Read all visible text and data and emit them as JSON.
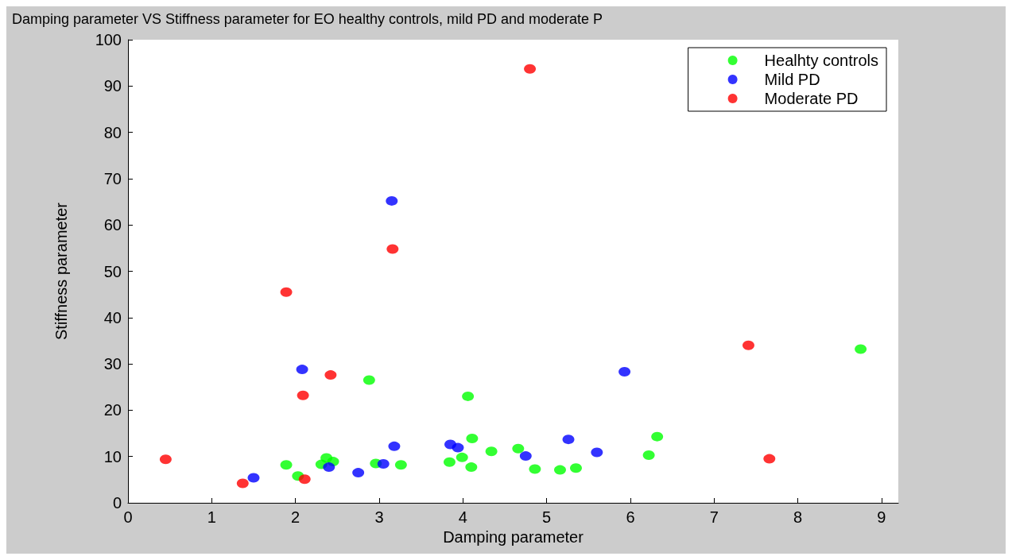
{
  "chart_data": {
    "type": "scatter",
    "title": "Damping parameter VS Stiffness parameter for EO healthy controls, mild PD and moderate P",
    "xlabel": "Damping parameter",
    "ylabel": "Stiffness parameter",
    "xlim": [
      0,
      9.2
    ],
    "xticks": [
      0,
      1,
      2,
      3,
      4,
      5,
      6,
      7,
      8,
      9
    ],
    "ylim": [
      0,
      100
    ],
    "yticks": [
      0,
      10,
      20,
      30,
      40,
      50,
      60,
      70,
      80,
      90,
      100
    ],
    "grid": false,
    "legend": "top right",
    "marker": "circle",
    "series": [
      {
        "name": "Healhty controls",
        "color": "#00ff00",
        "x": [
          1.89,
          2.03,
          2.31,
          2.37,
          2.45,
          2.88,
          2.96,
          3.26,
          3.84,
          3.99,
          4.06,
          4.11,
          4.1,
          4.34,
          4.66,
          4.86,
          5.16,
          5.35,
          6.22,
          6.32,
          8.75
        ],
        "values": [
          8.2,
          5.8,
          8.3,
          9.7,
          8.9,
          26.5,
          8.5,
          8.2,
          8.8,
          9.8,
          23.0,
          13.9,
          7.7,
          11.1,
          11.7,
          7.3,
          7.1,
          7.5,
          10.3,
          14.3,
          33.2
        ]
      },
      {
        "name": "Mild PD",
        "color": "#0000ff",
        "x": [
          1.5,
          2.08,
          2.4,
          2.75,
          3.05,
          3.15,
          3.18,
          3.85,
          3.94,
          4.75,
          5.26,
          5.6,
          5.93
        ],
        "values": [
          5.4,
          28.8,
          7.7,
          6.5,
          8.4,
          65.2,
          12.2,
          12.6,
          11.9,
          10.1,
          13.7,
          10.9,
          28.3
        ]
      },
      {
        "name": "Moderate PD",
        "color": "#ff0000",
        "x": [
          0.45,
          1.37,
          1.89,
          2.09,
          2.11,
          2.42,
          3.16,
          4.8,
          7.41,
          7.66
        ],
        "values": [
          9.4,
          4.2,
          45.5,
          23.2,
          5.1,
          27.6,
          54.8,
          93.7,
          34.0,
          9.5
        ]
      }
    ]
  }
}
